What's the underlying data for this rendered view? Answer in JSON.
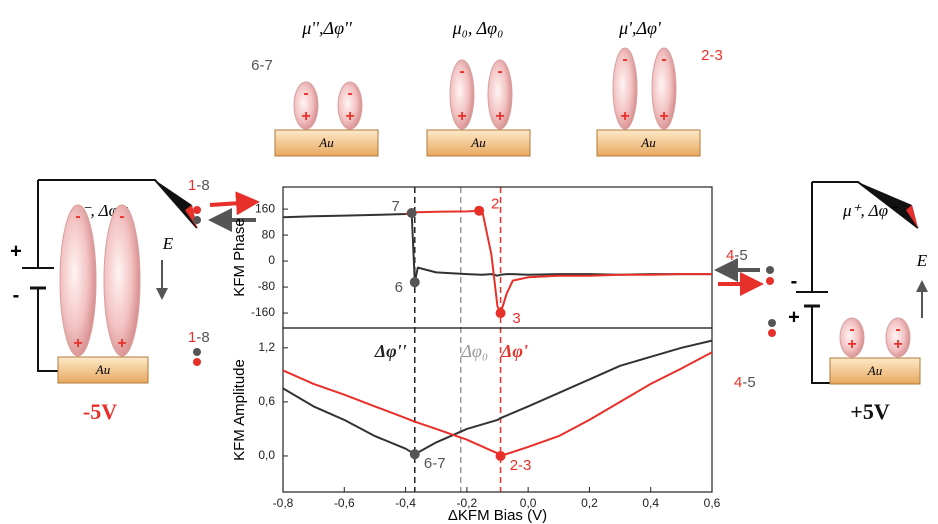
{
  "chart_data": [
    {
      "type": "line",
      "ylabel": "KFM Phase",
      "x": [
        -0.8,
        -0.7,
        -0.6,
        -0.5,
        -0.4,
        -0.38,
        -0.37,
        -0.36,
        -0.3,
        -0.2,
        -0.15,
        -0.12,
        -0.1,
        -0.09,
        -0.07,
        -0.05,
        0,
        0.1,
        0.2,
        0.3,
        0.4,
        0.5,
        0.6
      ],
      "series": [
        {
          "color": "#333333",
          "values": [
            135,
            138,
            140,
            142,
            145,
            148,
            -65,
            -20,
            -35,
            -40,
            -42,
            -40,
            -45,
            -42,
            -40,
            -40,
            -42,
            -40,
            -40,
            -42,
            -40,
            -40,
            -40
          ]
        },
        {
          "color": "#e8302a",
          "values": [
            null,
            null,
            null,
            null,
            145,
            148,
            150,
            150,
            152,
            153,
            155,
            20,
            -140,
            -160,
            -100,
            -60,
            -50,
            -45,
            -45,
            -42,
            -42,
            -40,
            -40
          ]
        }
      ],
      "xlim": [
        -0.8,
        0.6
      ],
      "ylim": [
        -206,
        228
      ],
      "yticks": [
        160,
        80,
        0,
        -80,
        -160
      ],
      "points": [
        {
          "x": -0.38,
          "y": 148,
          "label": "7",
          "color": "#555555"
        },
        {
          "x": -0.16,
          "y": 155,
          "label": "2",
          "color": "#e8302a"
        },
        {
          "x": -0.37,
          "y": -65,
          "label": "6",
          "color": "#555555"
        },
        {
          "x": -0.09,
          "y": -160,
          "label": "3",
          "color": "#e8302a"
        }
      ]
    },
    {
      "type": "line",
      "ylabel": "KFM Amplitude",
      "xlabel": "ΔKFM Bias (V)",
      "x": [
        -0.8,
        -0.7,
        -0.6,
        -0.5,
        -0.4,
        -0.37,
        -0.3,
        -0.2,
        -0.1,
        -0.09,
        0,
        0.1,
        0.2,
        0.3,
        0.4,
        0.5,
        0.6
      ],
      "series": [
        {
          "color": "#333333",
          "values": [
            0.75,
            0.55,
            0.4,
            0.22,
            0.08,
            0.02,
            0.15,
            0.3,
            0.4,
            0.42,
            0.55,
            0.7,
            0.85,
            1.0,
            1.1,
            1.2,
            1.28
          ]
        },
        {
          "color": "#e8302a",
          "values": [
            0.95,
            0.8,
            0.68,
            0.55,
            0.42,
            0.38,
            0.3,
            0.18,
            0.03,
            0.0,
            0.1,
            0.22,
            0.4,
            0.6,
            0.8,
            0.97,
            1.15
          ]
        }
      ],
      "xlim": [
        -0.8,
        0.6
      ],
      "ylim": [
        -0.4,
        1.42
      ],
      "yticks": [
        {
          "value": 0,
          "label": "0,0"
        },
        {
          "value": 0.6,
          "label": "0,6"
        },
        {
          "value": 1.2,
          "label": "1,2"
        }
      ],
      "xticks": [
        {
          "value": -0.8,
          "label": "-0,8"
        },
        {
          "value": -0.6,
          "label": "-0,6"
        },
        {
          "value": -0.4,
          "label": "-0,4"
        },
        {
          "value": -0.2,
          "label": "-0,2"
        },
        {
          "value": 0,
          "label": "0,0"
        },
        {
          "value": 0.2,
          "label": "0,2"
        },
        {
          "value": 0.4,
          "label": "0,4"
        },
        {
          "value": 0.6,
          "label": "0,6"
        }
      ],
      "vlines": [
        {
          "x": -0.37,
          "color": "#222222",
          "label": "Δφ''"
        },
        {
          "x": -0.22,
          "color": "#999999",
          "label": "Δφ₀"
        },
        {
          "x": -0.09,
          "color": "#e8302a",
          "label": "Δφ'"
        }
      ],
      "points": [
        {
          "x": -0.37,
          "y": 0.02,
          "label": "6-7",
          "color": "#555555"
        },
        {
          "x": -0.09,
          "y": 0.0,
          "label": "2-3",
          "color": "#e8302a"
        }
      ]
    }
  ],
  "diagrams": {
    "au": "Au",
    "plus": "+",
    "minus": "-",
    "field": "E",
    "top": [
      {
        "label": "μ'',Δφ''",
        "state": "6-7"
      },
      {
        "label": "μ₀, Δφ₀"
      },
      {
        "label": "μ',Δφ'",
        "state": "2-3"
      }
    ],
    "left": {
      "label": "μ⁻, Δφ⁻",
      "voltage": "-5V",
      "state": [
        "1",
        "-8"
      ]
    },
    "right": {
      "label": "μ⁺, Δφ⁺",
      "voltage": "+5V",
      "state": [
        "4",
        "-5"
      ]
    }
  }
}
